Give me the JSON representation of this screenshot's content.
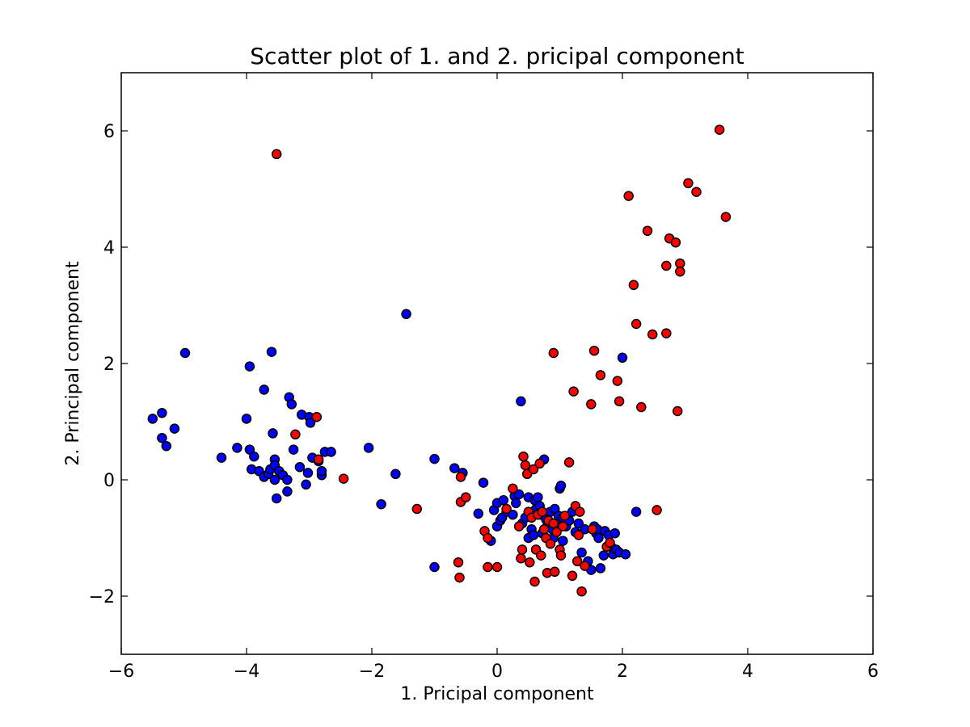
{
  "chart_data": {
    "type": "scatter",
    "title": "Scatter plot of 1. and 2. pricipal component",
    "xlabel": "1. Pricipal component",
    "ylabel": "2. Principal component",
    "xlim": [
      -6,
      6
    ],
    "ylim": [
      -3,
      7
    ],
    "x_ticks": [
      -6,
      -4,
      -2,
      0,
      2,
      4,
      6
    ],
    "y_ticks": [
      -2,
      0,
      2,
      4,
      6
    ],
    "x_tick_labels": [
      "−6",
      "−4",
      "−2",
      "0",
      "2",
      "4",
      "6"
    ],
    "y_tick_labels": [
      "−2",
      "0",
      "2",
      "4",
      "6"
    ],
    "grid": false,
    "legend": "none",
    "series": [
      {
        "color": "#0000ff",
        "points": [
          [
            -5.5,
            1.05
          ],
          [
            -5.35,
            1.15
          ],
          [
            -5.35,
            0.72
          ],
          [
            -5.28,
            0.58
          ],
          [
            -5.15,
            0.88
          ],
          [
            -4.98,
            2.18
          ],
          [
            -4.4,
            0.38
          ],
          [
            -4.15,
            0.55
          ],
          [
            -4.0,
            1.05
          ],
          [
            -3.95,
            1.95
          ],
          [
            -3.95,
            0.52
          ],
          [
            -3.92,
            0.18
          ],
          [
            -3.88,
            0.4
          ],
          [
            -3.8,
            0.15
          ],
          [
            -3.72,
            1.55
          ],
          [
            -3.72,
            0.05
          ],
          [
            -3.65,
            0.1
          ],
          [
            -3.62,
            0.18
          ],
          [
            -3.6,
            2.2
          ],
          [
            -3.58,
            0.8
          ],
          [
            -3.55,
            0.35
          ],
          [
            -3.55,
            0.25
          ],
          [
            -3.55,
            0.0
          ],
          [
            -3.52,
            -0.32
          ],
          [
            -3.48,
            0.15
          ],
          [
            -3.42,
            0.08
          ],
          [
            -3.35,
            -0.2
          ],
          [
            -3.35,
            0.0
          ],
          [
            -3.32,
            1.42
          ],
          [
            -3.28,
            1.3
          ],
          [
            -3.25,
            0.52
          ],
          [
            -3.15,
            0.22
          ],
          [
            -3.12,
            1.12
          ],
          [
            -3.05,
            -0.08
          ],
          [
            -3.02,
            0.12
          ],
          [
            -3.0,
            1.08
          ],
          [
            -2.98,
            0.98
          ],
          [
            -2.95,
            0.38
          ],
          [
            -2.85,
            0.32
          ],
          [
            -2.8,
            0.08
          ],
          [
            -2.8,
            0.15
          ],
          [
            -2.75,
            0.48
          ],
          [
            -2.65,
            0.48
          ],
          [
            -2.05,
            0.55
          ],
          [
            -1.85,
            -0.42
          ],
          [
            -1.62,
            0.1
          ],
          [
            -1.45,
            2.85
          ],
          [
            -1.0,
            0.36
          ],
          [
            -1.0,
            -1.5
          ],
          [
            -0.68,
            0.2
          ],
          [
            -0.55,
            0.12
          ],
          [
            -0.3,
            -0.58
          ],
          [
            -0.22,
            -0.05
          ],
          [
            -0.1,
            -1.05
          ],
          [
            -0.05,
            -0.52
          ],
          [
            0.0,
            -0.4
          ],
          [
            0.0,
            -0.8
          ],
          [
            0.05,
            -0.7
          ],
          [
            0.08,
            -0.65
          ],
          [
            0.1,
            -0.35
          ],
          [
            0.15,
            -0.55
          ],
          [
            0.25,
            -0.6
          ],
          [
            0.28,
            -0.28
          ],
          [
            0.3,
            -0.4
          ],
          [
            0.35,
            -0.25
          ],
          [
            0.38,
            1.35
          ],
          [
            0.4,
            -0.75
          ],
          [
            0.45,
            -0.65
          ],
          [
            0.5,
            -0.3
          ],
          [
            0.5,
            -1.0
          ],
          [
            0.55,
            -0.85
          ],
          [
            0.58,
            -0.95
          ],
          [
            0.6,
            -0.35
          ],
          [
            0.62,
            -0.5
          ],
          [
            0.65,
            -0.3
          ],
          [
            0.68,
            -0.45
          ],
          [
            0.7,
            -0.6
          ],
          [
            0.72,
            -0.92
          ],
          [
            0.75,
            0.35
          ],
          [
            0.78,
            -0.68
          ],
          [
            0.8,
            -0.8
          ],
          [
            0.85,
            -0.55
          ],
          [
            0.88,
            -0.85
          ],
          [
            0.9,
            -1.0
          ],
          [
            0.92,
            -0.5
          ],
          [
            0.95,
            -0.75
          ],
          [
            0.98,
            -0.62
          ],
          [
            1.0,
            -0.15
          ],
          [
            1.02,
            -0.1
          ],
          [
            1.05,
            -1.05
          ],
          [
            1.05,
            -0.65
          ],
          [
            1.1,
            -0.8
          ],
          [
            1.15,
            -0.7
          ],
          [
            1.2,
            -0.55
          ],
          [
            1.25,
            -0.9
          ],
          [
            1.3,
            -0.75
          ],
          [
            1.35,
            -1.25
          ],
          [
            1.4,
            -0.85
          ],
          [
            1.45,
            -1.4
          ],
          [
            1.5,
            -1.55
          ],
          [
            1.55,
            -0.8
          ],
          [
            1.58,
            -0.92
          ],
          [
            1.6,
            -0.85
          ],
          [
            1.62,
            -1.0
          ],
          [
            1.65,
            -1.52
          ],
          [
            1.7,
            -1.3
          ],
          [
            1.72,
            -0.88
          ],
          [
            1.78,
            -0.95
          ],
          [
            1.82,
            -1.15
          ],
          [
            1.85,
            -1.28
          ],
          [
            1.88,
            -0.92
          ],
          [
            1.9,
            -1.2
          ],
          [
            1.95,
            -1.25
          ],
          [
            2.0,
            2.1
          ],
          [
            2.05,
            -1.28
          ],
          [
            2.22,
            -0.55
          ]
        ]
      },
      {
        "color": "#ff0000",
        "points": [
          [
            -3.52,
            5.6
          ],
          [
            -3.22,
            0.78
          ],
          [
            -2.88,
            1.08
          ],
          [
            -2.85,
            0.35
          ],
          [
            -2.45,
            0.02
          ],
          [
            -1.28,
            -0.5
          ],
          [
            -0.62,
            -1.42
          ],
          [
            -0.6,
            -1.68
          ],
          [
            -0.58,
            -0.38
          ],
          [
            -0.58,
            0.05
          ],
          [
            -0.5,
            -0.3
          ],
          [
            -0.2,
            -0.88
          ],
          [
            -0.15,
            -1.0
          ],
          [
            -0.15,
            -1.5
          ],
          [
            0.0,
            -1.5
          ],
          [
            0.15,
            -0.5
          ],
          [
            0.25,
            -0.15
          ],
          [
            0.35,
            -0.8
          ],
          [
            0.38,
            -1.35
          ],
          [
            0.4,
            -1.2
          ],
          [
            0.42,
            0.4
          ],
          [
            0.45,
            0.25
          ],
          [
            0.48,
            0.1
          ],
          [
            0.5,
            -0.55
          ],
          [
            0.52,
            -1.42
          ],
          [
            0.55,
            -0.65
          ],
          [
            0.58,
            0.18
          ],
          [
            0.6,
            -1.75
          ],
          [
            0.62,
            -1.2
          ],
          [
            0.65,
            -0.6
          ],
          [
            0.68,
            0.28
          ],
          [
            0.7,
            -1.3
          ],
          [
            0.72,
            -0.55
          ],
          [
            0.75,
            -0.85
          ],
          [
            0.78,
            -1.0
          ],
          [
            0.8,
            -1.6
          ],
          [
            0.82,
            -0.7
          ],
          [
            0.85,
            -1.1
          ],
          [
            0.9,
            2.18
          ],
          [
            0.9,
            -0.75
          ],
          [
            0.92,
            -1.58
          ],
          [
            0.95,
            -0.9
          ],
          [
            1.0,
            -1.2
          ],
          [
            1.02,
            -1.3
          ],
          [
            1.05,
            -0.8
          ],
          [
            1.08,
            -0.62
          ],
          [
            1.15,
            0.3
          ],
          [
            1.2,
            -1.65
          ],
          [
            1.22,
            1.52
          ],
          [
            1.25,
            -0.45
          ],
          [
            1.28,
            -1.4
          ],
          [
            1.3,
            -0.95
          ],
          [
            1.32,
            -0.55
          ],
          [
            1.35,
            -1.92
          ],
          [
            1.4,
            -1.48
          ],
          [
            1.5,
            1.3
          ],
          [
            1.52,
            -0.85
          ],
          [
            1.55,
            2.22
          ],
          [
            1.65,
            1.8
          ],
          [
            1.75,
            -1.15
          ],
          [
            1.8,
            -1.08
          ],
          [
            1.92,
            1.7
          ],
          [
            1.95,
            1.35
          ],
          [
            2.1,
            4.88
          ],
          [
            2.18,
            3.35
          ],
          [
            2.22,
            2.68
          ],
          [
            2.3,
            1.25
          ],
          [
            2.4,
            4.28
          ],
          [
            2.48,
            2.5
          ],
          [
            2.55,
            -0.52
          ],
          [
            2.7,
            3.68
          ],
          [
            2.7,
            2.52
          ],
          [
            2.75,
            4.15
          ],
          [
            2.85,
            4.08
          ],
          [
            2.88,
            1.18
          ],
          [
            2.92,
            3.72
          ],
          [
            2.92,
            3.58
          ],
          [
            3.05,
            5.1
          ],
          [
            3.18,
            4.95
          ],
          [
            3.55,
            6.02
          ],
          [
            3.65,
            4.52
          ]
        ]
      }
    ]
  }
}
